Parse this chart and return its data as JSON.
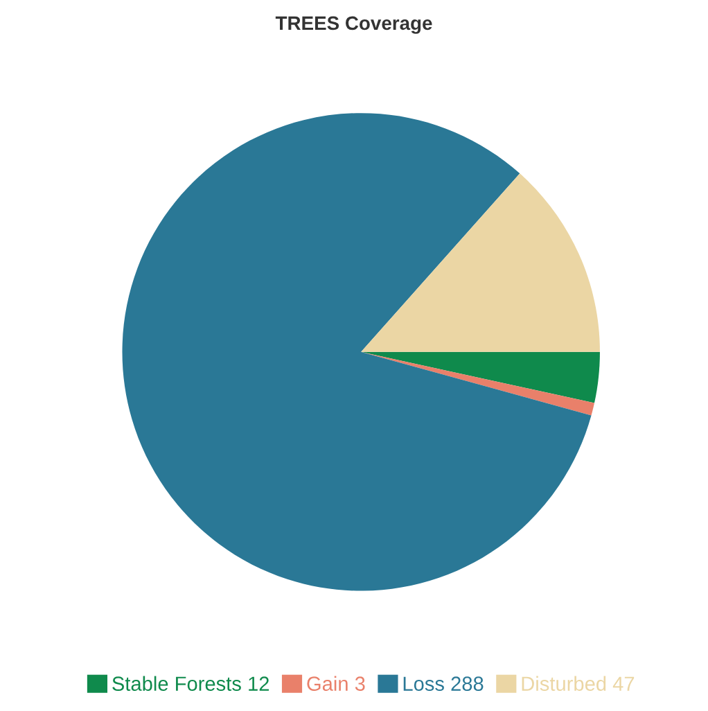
{
  "chart_data": {
    "type": "pie",
    "title": "TREES Coverage",
    "categories": [
      "Stable Forests 12",
      "Gain 3",
      "Loss 288",
      "Disturbed 47"
    ],
    "values": [
      12,
      3,
      288,
      47
    ],
    "colors": [
      "#0f8a4c",
      "#e9806a",
      "#2a7896",
      "#ebd6a4"
    ],
    "legend": "bottom"
  }
}
